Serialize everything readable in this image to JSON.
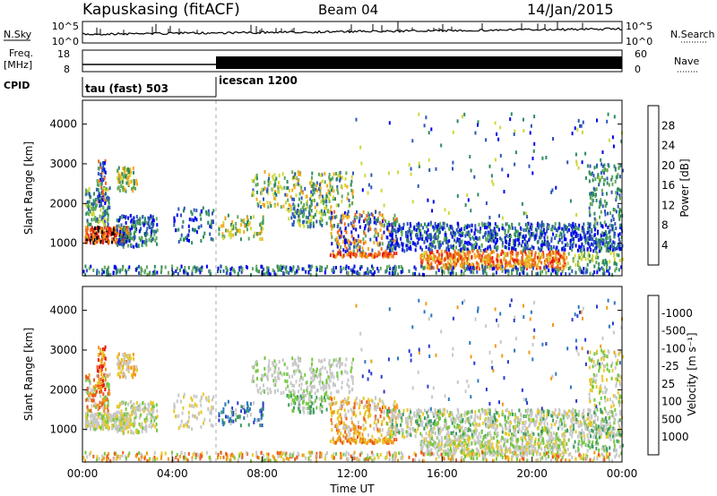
{
  "header": {
    "station": "Kapuskasing (fitACF)",
    "beam": "Beam 04",
    "date": "14/Jan/2015"
  },
  "params": {
    "nsky_label": "N.Sky",
    "nsky_ticks": [
      "10^5",
      "10^0"
    ],
    "nsearch_label": "N.Search",
    "nsearch_ticks": [
      "10^5",
      "10^0"
    ],
    "freq_label": "Freq.",
    "freq_unit": "[MHz]",
    "freq_ticks": [
      "18",
      "8"
    ],
    "nave_label": "Nave",
    "nave_ticks": [
      "60",
      "0"
    ],
    "cpid_label": "CPID",
    "cpid_modes": [
      {
        "name": "tau (fast) 503",
        "start_hour": 0
      },
      {
        "name": "icescan 1200",
        "start_hour": 6
      }
    ]
  },
  "chart_data": [
    {
      "type": "heatmap",
      "name": "power",
      "ylabel": "Slant Range [km]",
      "xlabel": "",
      "xlim": [
        0,
        24
      ],
      "ylim": [
        180,
        4600
      ],
      "yticks": [
        "1000",
        "2000",
        "3000",
        "4000"
      ],
      "colorbar": {
        "label": "Power [dB]",
        "ticks": [
          "4",
          "8",
          "12",
          "16",
          "20",
          "24",
          "28"
        ],
        "colors": [
          "#0000ee",
          "#2c56b8",
          "#2c8c5e",
          "#5fa85a",
          "#cfd838",
          "#f4a818",
          "#f06a1a",
          "#e82016"
        ]
      }
    },
    {
      "type": "heatmap",
      "name": "velocity",
      "ylabel": "Slant Range [km]",
      "xlabel": "Time UT",
      "xlim": [
        0,
        24
      ],
      "ylim": [
        180,
        4600
      ],
      "yticks": [
        "1000",
        "2000",
        "3000",
        "4000"
      ],
      "xticks": [
        "00:00",
        "04:00",
        "08:00",
        "12:00",
        "16:00",
        "20:00",
        "00:00"
      ],
      "colorbar": {
        "label": "Velocity [m s⁻¹]",
        "ticks": [
          "1000",
          "500",
          "100",
          "25",
          "-25",
          "-100",
          "-500",
          "-1000"
        ],
        "colors": [
          "#2a3ad0",
          "#2a78c0",
          "#3a9c60",
          "#74c840",
          "#c8c8c8",
          "#e8c828",
          "#f09a18",
          "#f05818",
          "#e81818"
        ]
      }
    }
  ]
}
